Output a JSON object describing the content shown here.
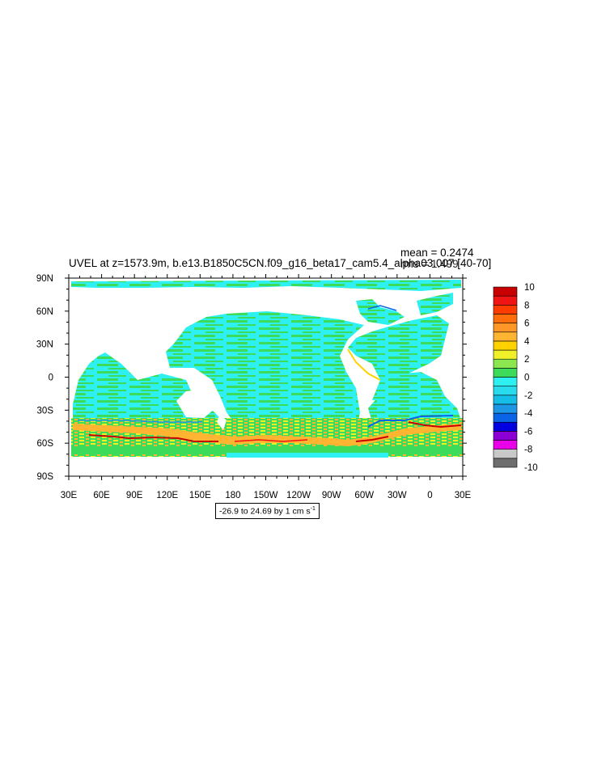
{
  "chart_data": {
    "type": "heatmap",
    "title": "UVEL at z=1573.9m, b.e13.B1850C5CN.f09_g16_beta17_cam5.4_alpha03.007 [40-70]",
    "stats": {
      "mean": "mean = 0.2474",
      "rms": "rms = 1.499"
    },
    "projection": "cylindrical equidistant",
    "xlim": [
      30,
      390
    ],
    "ylim": [
      -90,
      90
    ],
    "x_ticks": [
      30,
      60,
      90,
      120,
      150,
      180,
      210,
      240,
      270,
      300,
      330,
      360,
      390
    ],
    "x_tick_labels": [
      "30E",
      "60E",
      "90E",
      "120E",
      "150E",
      "180",
      "150W",
      "120W",
      "90W",
      "60W",
      "30W",
      "0",
      "30E"
    ],
    "y_ticks": [
      90,
      60,
      30,
      0,
      -30,
      -60,
      -90
    ],
    "y_tick_labels": [
      "90N",
      "60N",
      "30N",
      "0",
      "30S",
      "60S",
      "90S"
    ],
    "colorbar": {
      "levels": [
        -10,
        -8,
        -6,
        -4,
        -2,
        0,
        2,
        4,
        6,
        8,
        10
      ],
      "labels": [
        "10",
        "8",
        "6",
        "4",
        "2",
        "0",
        "-2",
        "-4",
        "-6",
        "-8",
        "-10"
      ],
      "colors_bottom_to_top": [
        "#6e6e6e",
        "#c8c8c8",
        "#e800e8",
        "#8c00d6",
        "#0000e0",
        "#0a64e6",
        "#1e96e6",
        "#14bee6",
        "#28dcee",
        "#2ef0f0",
        "#3cdc5a",
        "#8ce650",
        "#f0f028",
        "#ffd200",
        "#ffb432",
        "#ff9628",
        "#ff6e0a",
        "#ff3c00",
        "#f01414",
        "#c80000"
      ]
    },
    "range_note": {
      "prefix": "-26.9 to 24.69 by 1 cm s",
      "superscript": "-1"
    },
    "grid": false,
    "legend": "right"
  }
}
